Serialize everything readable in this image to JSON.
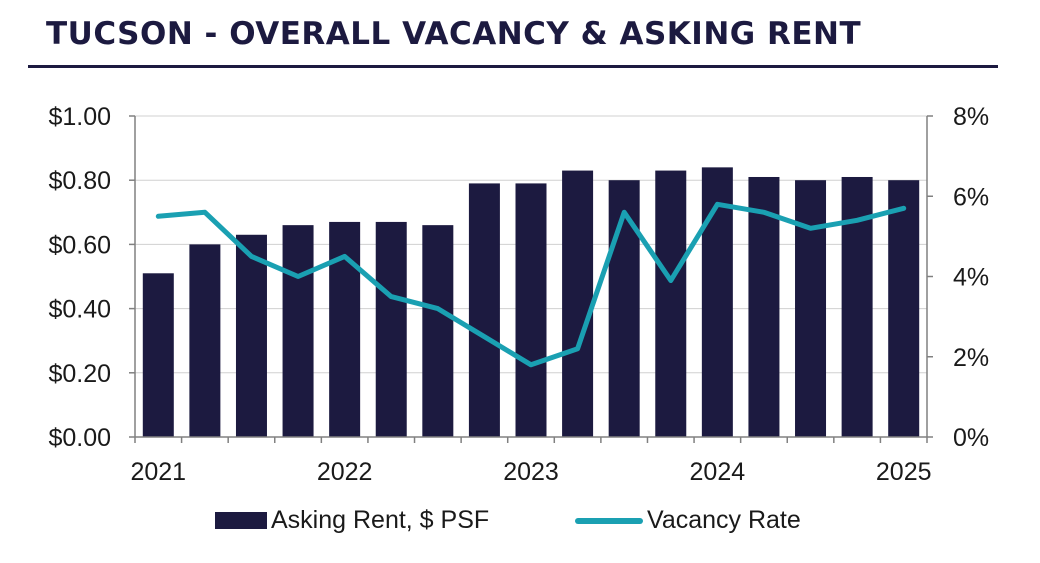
{
  "title": "TUCSON - OVERALL VACANCY & ASKING RENT",
  "colors": {
    "bar": "#1c1a40",
    "line": "#1aa0b2",
    "grid": "#d0d0d0",
    "axis": "#808080",
    "title": "#1c1a40"
  },
  "chart_data": {
    "type": "bar",
    "title": "TUCSON - OVERALL VACANCY & ASKING RENT",
    "x_tick_labels": [
      "2021",
      "2022",
      "2023",
      "2024",
      "2025"
    ],
    "y_left": {
      "ticks": [
        "$0.00",
        "$0.20",
        "$0.40",
        "$0.60",
        "$0.80",
        "$1.00"
      ],
      "ylim": [
        0,
        1.0
      ]
    },
    "y_right": {
      "ticks": [
        "0%",
        "2%",
        "4%",
        "6%",
        "8%"
      ],
      "ylim": [
        0,
        8
      ]
    },
    "grid": "horizontal",
    "legend_position": "bottom",
    "series": [
      {
        "name": "Asking Rent, $ PSF",
        "type": "bar",
        "axis": "left",
        "values": [
          0.51,
          0.6,
          0.63,
          0.66,
          0.67,
          0.67,
          0.66,
          0.79,
          0.79,
          0.83,
          0.8,
          0.83,
          0.84,
          0.81,
          0.8,
          0.81,
          0.8
        ]
      },
      {
        "name": "Vacancy Rate",
        "type": "line",
        "axis": "right",
        "values": [
          5.5,
          5.6,
          4.5,
          4.0,
          4.5,
          3.5,
          3.2,
          2.5,
          1.8,
          2.2,
          5.6,
          3.9,
          5.8,
          5.6,
          5.2,
          5.4,
          5.7
        ]
      }
    ]
  }
}
